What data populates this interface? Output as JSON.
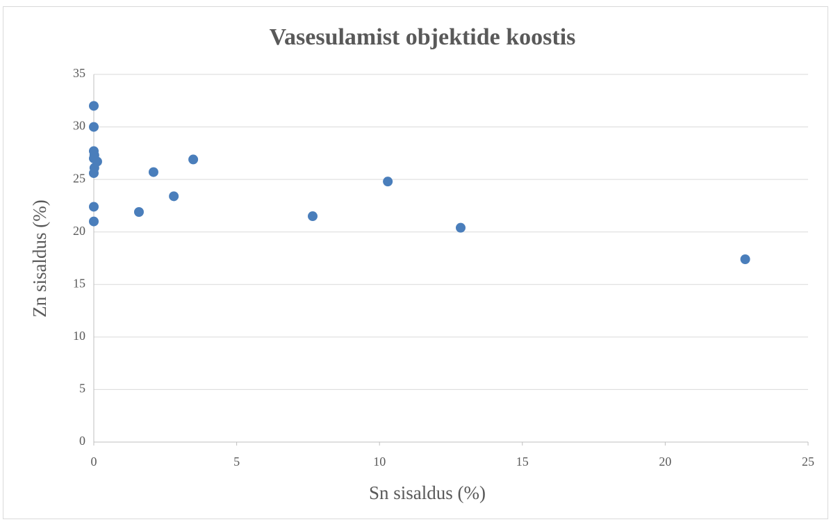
{
  "chart_data": {
    "type": "scatter",
    "title": "Vasesulamist objektide koostis",
    "x_label": "Sn sisaldus (%)",
    "y_label": "Zn sisaldus (%)",
    "series": [
      {
        "color": "#4a7ebb",
        "x": [
          0,
          0,
          0,
          0.02,
          0,
          0.12,
          0.02,
          0,
          0,
          0,
          1.58,
          2.09,
          2.8,
          3.48,
          7.66,
          10.29,
          12.84,
          22.8
        ],
        "values": [
          32.0,
          30.0,
          27.7,
          27.3,
          27.0,
          26.7,
          26.1,
          25.6,
          22.4,
          21.0,
          21.9,
          25.7,
          23.4,
          26.9,
          21.5,
          24.8,
          20.4,
          17.4
        ]
      }
    ],
    "xlim": [
      0,
      25
    ],
    "xticks": [
      0,
      5,
      10,
      15,
      20,
      25
    ],
    "ylim": [
      0,
      35
    ],
    "yticks": [
      0,
      5,
      10,
      15,
      20,
      25,
      30,
      35
    ],
    "grid": true
  }
}
